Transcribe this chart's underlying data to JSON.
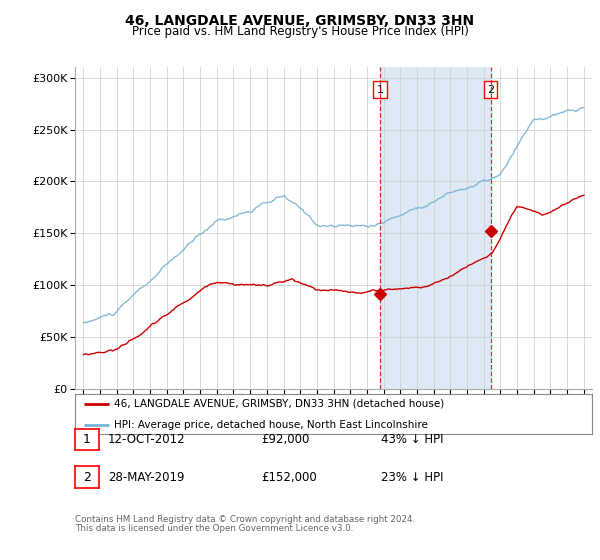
{
  "title1": "46, LANGDALE AVENUE, GRIMSBY, DN33 3HN",
  "title2": "Price paid vs. HM Land Registry's House Price Index (HPI)",
  "ytick_vals": [
    0,
    50000,
    100000,
    150000,
    200000,
    250000,
    300000
  ],
  "ylim": [
    0,
    310000
  ],
  "xlim_start": 1994.5,
  "xlim_end": 2025.5,
  "hpi_color": "#7ab3d4",
  "price_color": "#cc0000",
  "marker1_x": 2012.78,
  "marker1_y": 92000,
  "marker2_x": 2019.41,
  "marker2_y": 152000,
  "legend_line1": "46, LANGDALE AVENUE, GRIMSBY, DN33 3HN (detached house)",
  "legend_line2": "HPI: Average price, detached house, North East Lincolnshire",
  "annotation1_label": "1",
  "annotation1_date": "12-OCT-2012",
  "annotation1_price": "£92,000",
  "annotation1_hpi": "43% ↓ HPI",
  "annotation2_label": "2",
  "annotation2_date": "28-MAY-2019",
  "annotation2_price": "£152,000",
  "annotation2_hpi": "23% ↓ HPI",
  "footer1": "Contains HM Land Registry data © Crown copyright and database right 2024.",
  "footer2": "This data is licensed under the Open Government Licence v3.0.",
  "shade_color": "#ddeaf5"
}
